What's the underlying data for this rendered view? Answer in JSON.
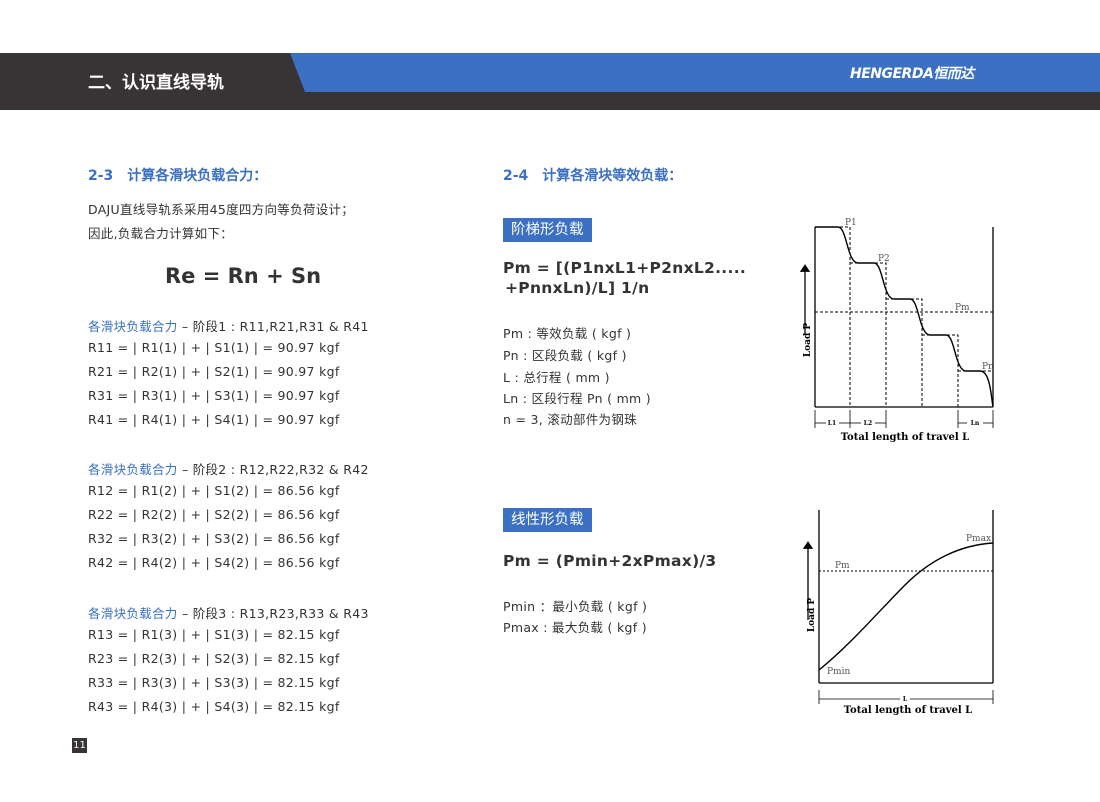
{
  "header": {
    "title": "二、认识直线导轨",
    "brand": "HENGERDA恒而达",
    "colors": {
      "dark": "#383435",
      "blue": "#3b70c2"
    }
  },
  "left": {
    "section_title": "2-3　计算各滑块负载合力：",
    "intro": [
      "DAJU直线导轨系采用45度四方向等负荷设计；",
      "因此,负载合力计算如下："
    ],
    "formula": "Re = Rn + Sn",
    "groups": [
      {
        "label": "各滑块负载合力",
        "stage": " – 阶段1 : R11,R21,R31 & R41",
        "rows": [
          "R11 = | R1(1) | + | S1(1) | = 90.97 kgf",
          "R21 = | R2(1) | + | S2(1) | = 90.97 kgf",
          "R31 = | R3(1) | + | S3(1) | = 90.97 kgf",
          "R41 = | R4(1) | + | S4(1) | = 90.97 kgf"
        ]
      },
      {
        "label": "各滑块负载合力",
        "stage": " – 阶段2 : R12,R22,R32 & R42",
        "rows": [
          "R12 = | R1(2) | + | S1(2) | = 86.56 kgf",
          "R22 = | R2(2) | + | S2(2) | = 86.56 kgf",
          "R32 = | R3(2) | + | S3(2) | = 86.56 kgf",
          "R42 = | R4(2) | + | S4(2) | = 86.56 kgf"
        ]
      },
      {
        "label": "各滑块负载合力",
        "stage": " – 阶段3 : R13,R23,R33 & R43",
        "rows": [
          "R13 = | R1(3) | + | S1(3) | = 82.15 kgf",
          "R23 = | R2(3) | + | S2(3) | = 82.15 kgf",
          "R33 = | R3(3) | + | S3(3) | = 82.15 kgf",
          "R43 = | R4(3) | + | S4(3) | = 82.15 kgf"
        ]
      }
    ]
  },
  "right": {
    "section_title": "2-4　计算各滑块等效负载：",
    "step": {
      "badge": "阶梯形负载",
      "formula": [
        "Pm = [(P1nxL1+P2nxL2.....",
        "+PnnxLn)/L] 1/n"
      ],
      "defs": [
        "Pm : 等效负载 ( kgf )",
        "Pn : 区段负载 ( kgf )",
        "L : 总行程 ( mm )",
        "Ln : 区段行程 Pn ( mm )",
        "n = 3, 滚动部件为钢珠"
      ]
    },
    "linear": {
      "badge": "线性形负载",
      "formula": "Pm = (Pmin+2xPmax)/3",
      "defs": [
        "Pmin ：最小负载 ( kgf )",
        "Pmax : 最大负载 ( kgf )"
      ]
    }
  },
  "diagram_step": {
    "labels": {
      "p1": "P1",
      "p2": "P2",
      "pm": "Pm",
      "pn": "Pn",
      "l1": "L1",
      "l2": "L2",
      "ln": "Ln",
      "ylabel": "Load P",
      "xlabel": "Total length of travel L"
    }
  },
  "diagram_linear": {
    "labels": {
      "pmax": "Pmax",
      "pm": "Pm",
      "pmin": "Pmin",
      "l": "L",
      "ylabel": "Load P",
      "xlabel": "Total length of travel L"
    }
  },
  "page_number": "11"
}
